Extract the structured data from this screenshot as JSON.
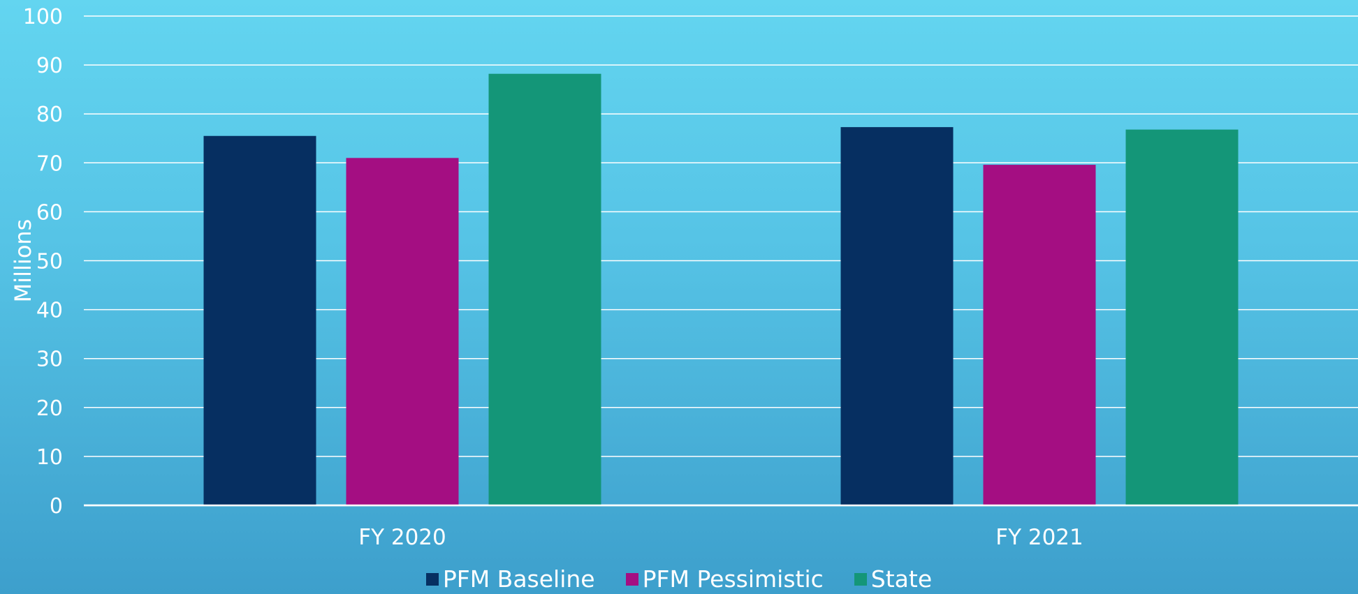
{
  "chart_data": {
    "type": "bar",
    "title": "",
    "xlabel": "",
    "ylabel": "Millions",
    "ylim": [
      0,
      100
    ],
    "yticks": [
      0,
      10,
      20,
      30,
      40,
      50,
      60,
      70,
      80,
      90,
      100
    ],
    "categories": [
      "FY 2020",
      "FY 2021"
    ],
    "series": [
      {
        "name": "PFM Baseline",
        "color": "#062f61",
        "values": [
          75.5,
          77.3
        ]
      },
      {
        "name": "PFM Pessimistic",
        "color": "#a40e82",
        "values": [
          71.0,
          69.6
        ]
      },
      {
        "name": "State",
        "color": "#149678",
        "values": [
          88.2,
          76.8
        ]
      }
    ],
    "grid": true,
    "legend": "bottom"
  }
}
